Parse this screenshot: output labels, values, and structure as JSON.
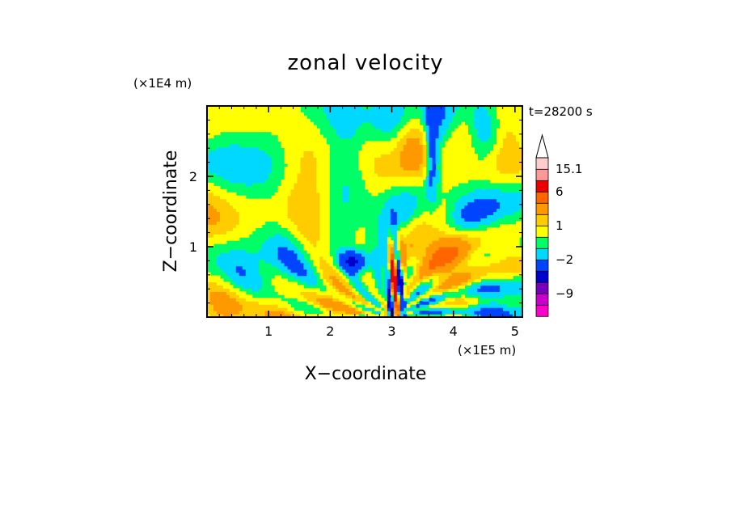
{
  "chart_data": {
    "type": "heatmap",
    "title": "zonal velocity",
    "xlabel": "X−coordinate",
    "ylabel": "Z−coordinate",
    "x_scale_label": "(×1E5 m)",
    "y_scale_label": "(×1E4 m)",
    "time_label": "t=28200 s",
    "xlim": [
      0,
      5.12
    ],
    "ylim": [
      0,
      3.0
    ],
    "x_ticks": [
      1,
      2,
      3,
      4,
      5
    ],
    "x_tick_labels": [
      "1",
      "2",
      "3",
      "4",
      "5"
    ],
    "y_ticks": [
      1,
      2
    ],
    "y_tick_labels": [
      "1",
      "2"
    ],
    "colorbar": {
      "levels": [
        -12,
        -9,
        -6,
        -4,
        -2,
        -1,
        0,
        1,
        2,
        4,
        6,
        10,
        15.1
      ],
      "labeled_levels": [
        {
          "value": 15.1,
          "label": "15.1"
        },
        {
          "value": 6,
          "label": "6"
        },
        {
          "value": 1,
          "label": "1"
        },
        {
          "value": -2,
          "label": "−2"
        },
        {
          "value": -9,
          "label": "−9"
        }
      ],
      "colors": [
        "#ff00cc",
        "#cc00cc",
        "#7700bb",
        "#0000cc",
        "#0044ff",
        "#00d8ff",
        "#00ff66",
        "#ffff00",
        "#ffcc00",
        "#ff9900",
        "#ff6600",
        "#ee0000",
        "#ff9999",
        "#ffcccc"
      ],
      "extend": "max"
    },
    "background_color": "#00ff66"
  }
}
